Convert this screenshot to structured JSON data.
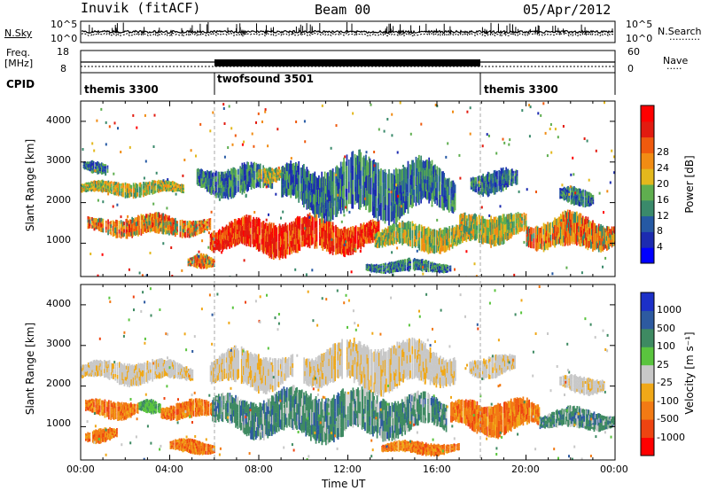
{
  "header": {
    "station": "Inuvik (fitACF)",
    "beam": "Beam 00",
    "date": "05/Apr/2012"
  },
  "strip_labels": {
    "nsky": "N.Sky",
    "nsearch": "N.Search",
    "freq": "Freq.",
    "freq_unit": "[MHz]",
    "nave": "Nave",
    "cpid": "CPID",
    "left_top_tick": "10^5",
    "left_bottom_tick": "10^0",
    "right_top_tick": "10^5",
    "right_bottom_tick": "10^0",
    "freq_top": "18",
    "freq_bottom": "8",
    "nave_top": "60",
    "nave_bottom": "0"
  },
  "programs": [
    {
      "name": "themis 3300",
      "start_hour": 0
    },
    {
      "name": "twofsound 3501",
      "start_hour": 6
    },
    {
      "name": "themis 3300",
      "start_hour": 18
    }
  ],
  "chart_data": [
    {
      "type": "heatmap",
      "quantity": "Power",
      "xlabel": "Time UT",
      "ylabel": "Slant Range [km]",
      "xlim_hours": [
        0,
        24
      ],
      "ylim": [
        180,
        4500
      ],
      "y_ticks": [
        "1000",
        "2000",
        "3000",
        "4000"
      ],
      "colorbar_label": "Power [dB]",
      "colorbar_ticks": [
        "4",
        "8",
        "12",
        "16",
        "20",
        "24",
        "28"
      ],
      "colorbar_colors": [
        "#0000ff",
        "#1c2bb0",
        "#2559a4",
        "#3a8a6b",
        "#5fae4f",
        "#e3b81d",
        "#f18c14",
        "#ef5a0e",
        "#e21b10",
        "#ff0000"
      ],
      "patches": [
        {
          "t0": 0.0,
          "t1": 4.6,
          "r0": 2150,
          "r1": 2550,
          "v": "mid"
        },
        {
          "t0": 0.3,
          "t1": 5.8,
          "r0": 1150,
          "r1": 1700,
          "v": "high"
        },
        {
          "t0": 0.1,
          "t1": 1.2,
          "r0": 2700,
          "r1": 3050,
          "v": "low"
        },
        {
          "t0": 4.8,
          "t1": 6.0,
          "r0": 300,
          "r1": 700,
          "v": "high"
        },
        {
          "t0": 5.2,
          "t1": 8.6,
          "r0": 2150,
          "r1": 2950,
          "v": "low"
        },
        {
          "t0": 5.8,
          "t1": 13.4,
          "r0": 700,
          "r1": 1650,
          "v": "max"
        },
        {
          "t0": 7.9,
          "t1": 9.0,
          "r0": 2500,
          "r1": 2950,
          "v": "mid"
        },
        {
          "t0": 9.0,
          "t1": 16.8,
          "r0": 1600,
          "r1": 3100,
          "v": "low"
        },
        {
          "t0": 12.8,
          "t1": 16.6,
          "r0": 250,
          "r1": 600,
          "v": "low"
        },
        {
          "t0": 13.2,
          "t1": 17.6,
          "r0": 800,
          "r1": 1500,
          "v": "mid"
        },
        {
          "t0": 17.0,
          "t1": 20.0,
          "r0": 1000,
          "r1": 1800,
          "v": "mid"
        },
        {
          "t0": 17.5,
          "t1": 19.6,
          "r0": 2200,
          "r1": 2850,
          "v": "low"
        },
        {
          "t0": 20.0,
          "t1": 24.0,
          "r0": 800,
          "r1": 1700,
          "v": "high"
        },
        {
          "t0": 21.5,
          "t1": 23.0,
          "r0": 1900,
          "r1": 2400,
          "v": "low"
        }
      ]
    },
    {
      "type": "heatmap",
      "quantity": "Velocity",
      "xlabel": "Time UT",
      "ylabel": "Slant Range [km]",
      "xlim_hours": [
        0,
        24
      ],
      "ylim": [
        180,
        4500
      ],
      "y_ticks": [
        "1000",
        "2000",
        "3000",
        "4000"
      ],
      "x_ticks": [
        "00:00",
        "04:00",
        "08:00",
        "12:00",
        "16:00",
        "20:00",
        "00:00"
      ],
      "colorbar_label": "Velocity [m s⁻¹]",
      "colorbar_ticks": [
        "-1000",
        "-500",
        "-100",
        "-25",
        "25",
        "100",
        "500",
        "1000"
      ],
      "colorbar_colors": [
        "#ff0000",
        "#ee4411",
        "#f27a14",
        "#f0a818",
        "#c8c8c8",
        "#5ac43e",
        "#3e8a62",
        "#2d5aa0",
        "#1c30c8"
      ],
      "patches": [
        {
          "t0": 0.0,
          "t1": 5.0,
          "r0": 2050,
          "r1": 2650,
          "v": "zero"
        },
        {
          "t0": 0.2,
          "t1": 2.6,
          "r0": 1200,
          "r1": 1700,
          "v": "away"
        },
        {
          "t0": 2.6,
          "t1": 3.6,
          "r0": 1250,
          "r1": 1650,
          "v": "lgreen"
        },
        {
          "t0": 3.6,
          "t1": 6.2,
          "r0": 1150,
          "r1": 1650,
          "v": "away"
        },
        {
          "t0": 0.2,
          "t1": 1.6,
          "r0": 600,
          "r1": 1000,
          "v": "away"
        },
        {
          "t0": 4.0,
          "t1": 6.0,
          "r0": 300,
          "r1": 700,
          "v": "away"
        },
        {
          "t0": 5.8,
          "t1": 9.5,
          "r0": 1900,
          "r1": 2900,
          "v": "zero"
        },
        {
          "t0": 5.9,
          "t1": 16.4,
          "r0": 700,
          "r1": 1900,
          "v": "dgreen"
        },
        {
          "t0": 10.0,
          "t1": 16.8,
          "r0": 1900,
          "r1": 3100,
          "v": "zero"
        },
        {
          "t0": 13.5,
          "t1": 17.0,
          "r0": 300,
          "r1": 650,
          "v": "away"
        },
        {
          "t0": 16.6,
          "t1": 20.6,
          "r0": 800,
          "r1": 1700,
          "v": "away"
        },
        {
          "t0": 17.4,
          "t1": 19.5,
          "r0": 2200,
          "r1": 2800,
          "v": "zero"
        },
        {
          "t0": 20.6,
          "t1": 24.0,
          "r0": 900,
          "r1": 1450,
          "v": "dgreen"
        },
        {
          "t0": 21.5,
          "t1": 23.5,
          "r0": 1800,
          "r1": 2300,
          "v": "zero"
        }
      ]
    }
  ]
}
